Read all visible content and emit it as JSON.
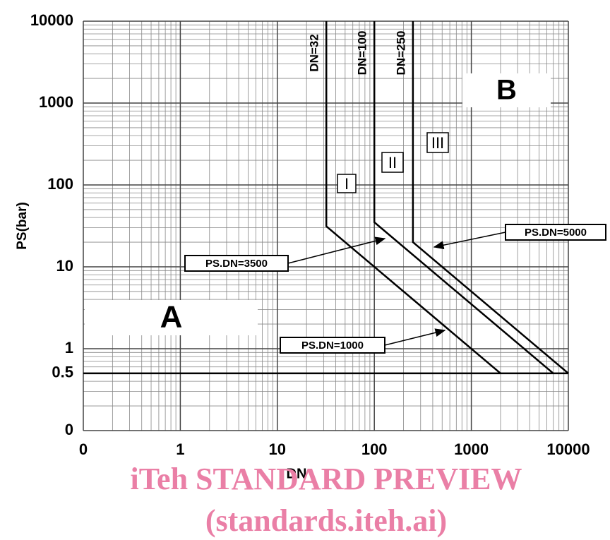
{
  "chart_data": {
    "type": "line",
    "x_label": "DN",
    "y_label": "PS(bar)",
    "log_x": true,
    "log_y": true,
    "grid": true,
    "xlim": [
      0.1,
      10000
    ],
    "ylim": [
      0.1,
      10000
    ],
    "xticks": [
      {
        "value": 0.1,
        "label": "0"
      },
      1,
      10,
      100,
      1000,
      10000
    ],
    "yticks": [
      {
        "value": 0.1,
        "label": "0"
      },
      0.5,
      1,
      10,
      100,
      1000,
      10000
    ],
    "reference_lines": [
      0.5
    ],
    "series": [
      {
        "name": "DN=32",
        "color": "#000000",
        "x": [
          32,
          32,
          2000
        ],
        "values": [
          10000,
          31.25,
          0.5
        ]
      },
      {
        "name": "DN=100",
        "color": "#000000",
        "x": [
          100,
          100,
          7000
        ],
        "values": [
          10000,
          35,
          0.5
        ]
      },
      {
        "name": "DN=250",
        "color": "#000000",
        "x": [
          250,
          250,
          10000
        ],
        "values": [
          10000,
          20,
          0.5
        ]
      }
    ],
    "regions": [
      "A",
      "B",
      "I",
      "II",
      "III"
    ],
    "annotations": [
      "PS.DN=1000",
      "PS.DN=3500",
      "PS.DN=5000"
    ],
    "watermark": [
      "iTeh STANDARD PREVIEW",
      "(standards.iteh.ai)"
    ]
  }
}
